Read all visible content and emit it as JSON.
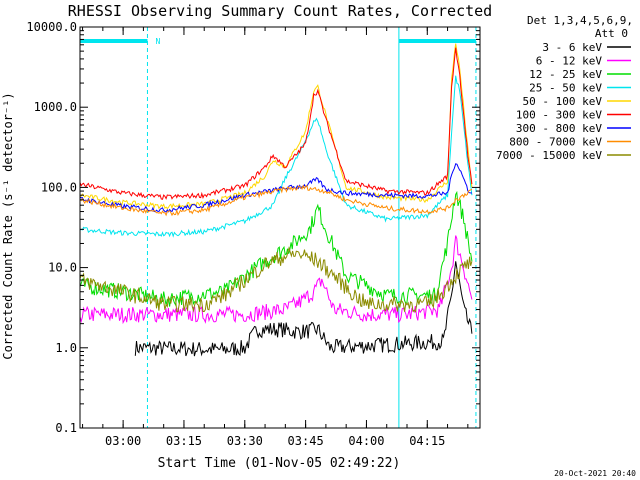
{
  "chart_data": {
    "type": "line",
    "title": "RHESSI Observing Summary Count Rates, Corrected",
    "xlabel": "Start Time (01-Nov-05 02:49:22)",
    "ylabel": "Corrected Count Rate (s⁻¹ detector⁻¹)",
    "yscale": "log",
    "ylim": [
      0.1,
      10000
    ],
    "xlim": [
      "02:49:22",
      "04:28"
    ],
    "xticks": [
      "03:00",
      "03:15",
      "03:30",
      "03:45",
      "04:00",
      "04:15"
    ],
    "yticks": [
      "0.1",
      "1.0",
      "10.0",
      "100.0",
      "1000.0",
      "10000.0"
    ],
    "legend_header": [
      "Det 1,3,4,5,6,9,",
      "Att 0"
    ],
    "legend_position": "top-right, outside plot",
    "timestamp": "20-Oct-2021 20:40",
    "night_bars": [
      {
        "start": "02:49:22",
        "end": "03:06"
      },
      {
        "start": "04:08",
        "end": "04:27"
      }
    ],
    "saa_marker": "N",
    "series": [
      {
        "name": "3 - 6 keV",
        "color": "#000000",
        "x": [
          "03:03",
          "03:25",
          "03:30",
          "03:33",
          "03:36",
          "03:39",
          "03:42",
          "03:45",
          "03:48",
          "03:51",
          "04:19",
          "04:21",
          "04:22",
          "04:24",
          "04:26"
        ],
        "y": [
          1.0,
          0.95,
          1.0,
          1.7,
          1.7,
          1.7,
          1.6,
          1.6,
          1.7,
          1.0,
          1.2,
          4.5,
          12,
          3,
          1.5
        ]
      },
      {
        "name": "6 - 12 keV",
        "color": "#ff00ff",
        "x": [
          "02:49:22",
          "03:00",
          "03:15",
          "03:30",
          "03:40",
          "03:44",
          "03:47",
          "03:49",
          "03:52",
          "04:00",
          "04:10",
          "04:18",
          "04:21",
          "04:22",
          "04:24",
          "04:26"
        ],
        "y": [
          2.6,
          2.6,
          2.6,
          2.6,
          3,
          3.8,
          5,
          7,
          3,
          2.6,
          2.6,
          3,
          10,
          22,
          10,
          4
        ]
      },
      {
        "name": "12 - 25 keV",
        "color": "#00dd00",
        "x": [
          "02:49:22",
          "03:00",
          "03:10",
          "03:25",
          "03:35",
          "03:42",
          "03:46",
          "03:48",
          "03:50",
          "03:55",
          "04:05",
          "04:17",
          "04:20",
          "04:22",
          "04:24",
          "04:26"
        ],
        "y": [
          6,
          5,
          4,
          5,
          12,
          20,
          30,
          55,
          30,
          8,
          4.5,
          4.5,
          20,
          90,
          40,
          12
        ]
      },
      {
        "name": "25 - 50 keV",
        "color": "#00e5ee",
        "x": [
          "02:49:22",
          "03:00",
          "03:10",
          "03:20",
          "03:30",
          "03:37",
          "03:40",
          "03:44",
          "03:47",
          "03:48",
          "03:50",
          "03:55",
          "04:05",
          "04:15",
          "04:20",
          "04:21",
          "04:22",
          "04:23",
          "04:25",
          "04:26"
        ],
        "y": [
          30,
          27,
          26,
          28,
          38,
          60,
          130,
          300,
          650,
          700,
          300,
          60,
          40,
          45,
          80,
          500,
          2400,
          1600,
          200,
          80
        ]
      },
      {
        "name": "50 - 100 keV",
        "color": "#ffd700",
        "x": [
          "02:49:22",
          "03:00",
          "03:10",
          "03:20",
          "03:30",
          "03:35",
          "03:37",
          "03:40",
          "03:45",
          "03:47",
          "03:48",
          "03:50",
          "03:55",
          "04:05",
          "04:15",
          "04:20",
          "04:21",
          "04:22",
          "04:23",
          "04:25",
          "04:26"
        ],
        "y": [
          80,
          65,
          58,
          62,
          85,
          140,
          220,
          180,
          500,
          1600,
          1800,
          800,
          100,
          75,
          70,
          120,
          2200,
          6500,
          3000,
          300,
          100
        ]
      },
      {
        "name": "100 - 300 keV",
        "color": "#ff0000",
        "x": [
          "02:49:22",
          "03:00",
          "03:10",
          "03:20",
          "03:30",
          "03:35",
          "03:37",
          "03:40",
          "03:45",
          "03:47",
          "03:48",
          "03:50",
          "03:55",
          "04:05",
          "04:15",
          "04:20",
          "04:21",
          "04:22",
          "04:23",
          "04:25",
          "04:26"
        ],
        "y": [
          110,
          85,
          75,
          80,
          105,
          180,
          250,
          180,
          350,
          1400,
          1600,
          700,
          120,
          90,
          85,
          140,
          1800,
          5500,
          2500,
          250,
          110
        ]
      },
      {
        "name": "300 - 800 keV",
        "color": "#0000ff",
        "x": [
          "02:49:22",
          "03:00",
          "03:10",
          "03:20",
          "03:30",
          "03:40",
          "03:45",
          "03:47",
          "03:48",
          "03:50",
          "03:55",
          "04:05",
          "04:15",
          "04:20",
          "04:21",
          "04:22",
          "04:23",
          "04:25",
          "04:26"
        ],
        "y": [
          72,
          58,
          52,
          60,
          80,
          98,
          105,
          120,
          125,
          95,
          85,
          80,
          78,
          85,
          140,
          210,
          170,
          95,
          85
        ]
      },
      {
        "name": "800 - 7000 keV",
        "color": "#ff8c00",
        "x": [
          "02:49:22",
          "03:00",
          "03:10",
          "03:20",
          "03:30",
          "03:40",
          "03:45",
          "03:50",
          "03:55",
          "04:05",
          "04:15",
          "04:20",
          "04:22",
          "04:24",
          "04:26"
        ],
        "y": [
          70,
          55,
          47,
          52,
          75,
          95,
          100,
          90,
          70,
          55,
          50,
          55,
          70,
          80,
          95
        ]
      },
      {
        "name": "7000 - 15000 keV",
        "color": "#8b8b00",
        "x": [
          "02:49:22",
          "03:00",
          "03:10",
          "03:20",
          "03:25",
          "03:30",
          "03:35",
          "03:40",
          "03:43",
          "03:45",
          "03:48",
          "03:52",
          "03:56",
          "04:00",
          "04:05",
          "04:15",
          "04:18",
          "04:20",
          "04:22",
          "04:24",
          "04:26"
        ],
        "y": [
          7,
          5,
          3.5,
          3.5,
          4.5,
          7,
          11,
          14,
          15,
          14,
          12,
          8,
          5,
          3.5,
          3.5,
          3.5,
          4.5,
          6,
          8,
          10,
          12
        ]
      }
    ]
  }
}
